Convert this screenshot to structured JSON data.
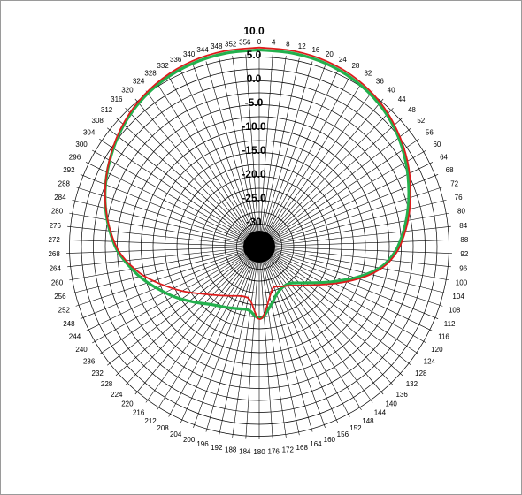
{
  "chart_data": {
    "type": "polar",
    "title": "",
    "angle_unit": "degrees",
    "angle_direction": "clockwise",
    "zero_direction": "top",
    "angle_tick_step": 4,
    "angle_ticks": [
      "0",
      "4",
      "8",
      "12",
      "16",
      "20",
      "24",
      "28",
      "32",
      "36",
      "40",
      "44",
      "48",
      "52",
      "56",
      "60",
      "64",
      "68",
      "72",
      "76",
      "80",
      "84",
      "88",
      "92",
      "96",
      "100",
      "104",
      "108",
      "112",
      "116",
      "120",
      "124",
      "128",
      "132",
      "136",
      "140",
      "144",
      "148",
      "152",
      "156",
      "160",
      "164",
      "168",
      "172",
      "176",
      "180",
      "184",
      "188",
      "192",
      "196",
      "200",
      "204",
      "208",
      "212",
      "216",
      "220",
      "224",
      "228",
      "232",
      "236",
      "240",
      "244",
      "248",
      "252",
      "256",
      "260",
      "264",
      "268",
      "272",
      "276",
      "280",
      "284",
      "288",
      "292",
      "296",
      "300",
      "304",
      "308",
      "312",
      "316",
      "320",
      "324",
      "328",
      "332",
      "336",
      "340",
      "344",
      "348",
      "352",
      "356"
    ],
    "radial_ticks": [
      "10.0",
      "5.0",
      "0.0",
      "-5.0",
      "-10.0",
      "-15.0",
      "-20.0",
      "-25.0",
      "-30"
    ],
    "rlim": [
      -33,
      17
    ],
    "series": [
      {
        "color": "#dd1c1c",
        "points": [
          [
            0,
            6.5
          ],
          [
            10,
            6.4
          ],
          [
            20,
            6.1
          ],
          [
            30,
            5.4
          ],
          [
            40,
            4.2
          ],
          [
            50,
            2.5
          ],
          [
            60,
            0.6
          ],
          [
            70,
            -1.5
          ],
          [
            80,
            -3.6
          ],
          [
            90,
            -5.8
          ],
          [
            96,
            -7.6
          ],
          [
            100,
            -9.2
          ],
          [
            104,
            -11.2
          ],
          [
            108,
            -13.4
          ],
          [
            112,
            -15.6
          ],
          [
            116,
            -17.6
          ],
          [
            120,
            -19.4
          ],
          [
            130,
            -22.6
          ],
          [
            140,
            -24.6
          ],
          [
            150,
            -25.6
          ],
          [
            160,
            -26.2
          ],
          [
            165,
            -25.4
          ],
          [
            170,
            -23.8
          ],
          [
            175,
            -21.4
          ],
          [
            178,
            -20.2
          ],
          [
            181,
            -20.2
          ],
          [
            184,
            -21.6
          ],
          [
            188,
            -23.4
          ],
          [
            192,
            -24.2
          ],
          [
            200,
            -24.2
          ],
          [
            210,
            -23.3
          ],
          [
            220,
            -21.9
          ],
          [
            230,
            -19.8
          ],
          [
            240,
            -16.6
          ],
          [
            250,
            -12.8
          ],
          [
            256,
            -10.2
          ],
          [
            260,
            -8.7
          ],
          [
            264,
            -7.2
          ],
          [
            270,
            -5.3
          ],
          [
            280,
            -3.0
          ],
          [
            290,
            -0.9
          ],
          [
            300,
            1.0
          ],
          [
            310,
            2.8
          ],
          [
            320,
            4.3
          ],
          [
            330,
            5.4
          ],
          [
            340,
            6.1
          ],
          [
            350,
            6.4
          ],
          [
            360,
            6.5
          ]
        ]
      },
      {
        "color": "#23b04d",
        "points": [
          [
            0,
            6.0
          ],
          [
            10,
            5.9
          ],
          [
            20,
            5.6
          ],
          [
            30,
            4.9
          ],
          [
            40,
            3.8
          ],
          [
            50,
            2.2
          ],
          [
            60,
            0.2
          ],
          [
            70,
            -1.9
          ],
          [
            80,
            -4.0
          ],
          [
            90,
            -6.2
          ],
          [
            96,
            -8.0
          ],
          [
            100,
            -9.6
          ],
          [
            104,
            -11.8
          ],
          [
            108,
            -14.1
          ],
          [
            112,
            -16.4
          ],
          [
            116,
            -18.4
          ],
          [
            120,
            -20.2
          ],
          [
            130,
            -23.4
          ],
          [
            140,
            -25.2
          ],
          [
            150,
            -25.4
          ],
          [
            160,
            -24.6
          ],
          [
            165,
            -23.6
          ],
          [
            170,
            -22.4
          ],
          [
            175,
            -21.0
          ],
          [
            178,
            -20.3
          ],
          [
            181,
            -20.3
          ],
          [
            184,
            -20.8
          ],
          [
            188,
            -21.6
          ],
          [
            192,
            -21.8
          ],
          [
            200,
            -21.4
          ],
          [
            210,
            -20.6
          ],
          [
            220,
            -19.4
          ],
          [
            230,
            -17.2
          ],
          [
            240,
            -14.4
          ],
          [
            250,
            -11.4
          ],
          [
            256,
            -9.4
          ],
          [
            260,
            -8.2
          ],
          [
            264,
            -6.9
          ],
          [
            270,
            -5.1
          ],
          [
            280,
            -2.9
          ],
          [
            290,
            -0.9
          ],
          [
            300,
            0.9
          ],
          [
            310,
            2.6
          ],
          [
            320,
            4.0
          ],
          [
            330,
            5.0
          ],
          [
            340,
            5.6
          ],
          [
            350,
            5.9
          ],
          [
            360,
            6.0
          ]
        ]
      }
    ]
  }
}
